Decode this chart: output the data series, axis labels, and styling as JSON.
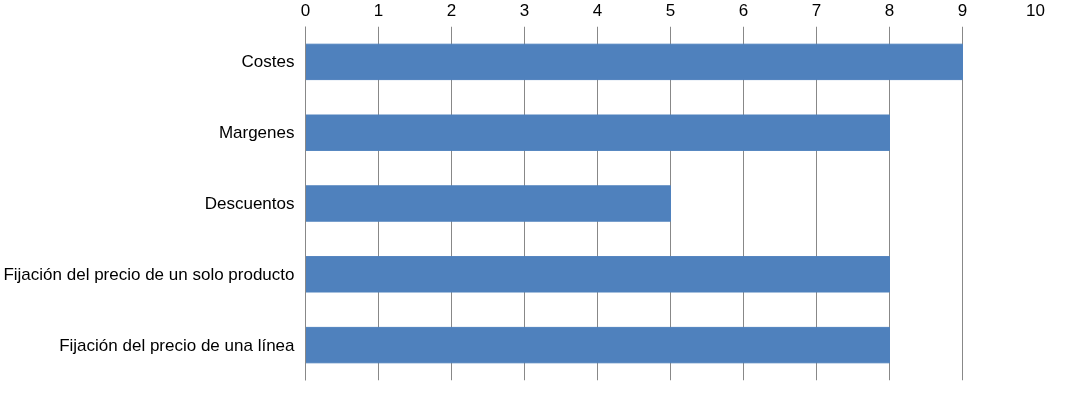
{
  "chart_data": {
    "type": "bar",
    "orientation": "horizontal",
    "categories": [
      "Costes",
      "Margenes",
      "Descuentos",
      "Fijación del precio de un solo producto",
      "Fijación del precio de una línea"
    ],
    "values": [
      9,
      8,
      5,
      8,
      8
    ],
    "color": "#4f81bd",
    "xlim": [
      0,
      10
    ],
    "xticks": [
      0,
      1,
      2,
      3,
      4,
      5,
      6,
      7,
      8,
      9,
      10
    ],
    "grid": "x"
  }
}
